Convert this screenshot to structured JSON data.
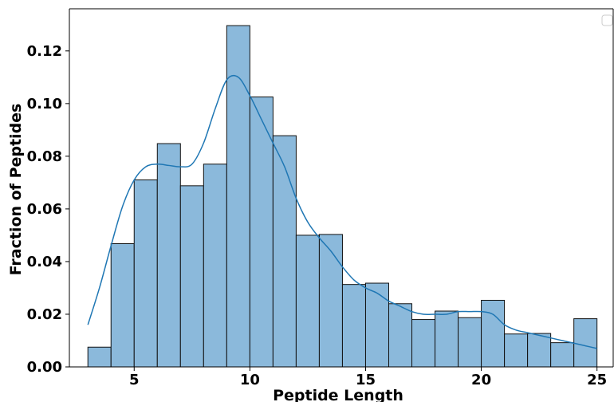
{
  "chart_data": {
    "type": "bar",
    "subtype": "histogram-with-kde",
    "title": "",
    "xlabel": "Peptide Length",
    "ylabel": "Fraction of Peptides",
    "xlim": [
      2.2,
      25.7
    ],
    "ylim": [
      0,
      0.136
    ],
    "x_ticks": [
      5,
      10,
      15,
      20,
      25
    ],
    "y_ticks": [
      0.0,
      0.02,
      0.04,
      0.06,
      0.08,
      0.1,
      0.12
    ],
    "y_tick_labels": [
      "0.00",
      "0.02",
      "0.04",
      "0.06",
      "0.08",
      "0.10",
      "0.12"
    ],
    "bin_width": 1,
    "bin_starts": [
      3,
      4,
      5,
      6,
      7,
      8,
      9,
      10,
      11,
      12,
      13,
      14,
      15,
      16,
      17,
      18,
      19,
      20,
      21,
      22,
      23,
      24
    ],
    "values": [
      0.0075,
      0.0468,
      0.071,
      0.0848,
      0.0688,
      0.077,
      0.1296,
      0.1025,
      0.0878,
      0.05,
      0.0503,
      0.0313,
      0.0318,
      0.024,
      0.018,
      0.0212,
      0.0187,
      0.0253,
      0.0125,
      0.0127,
      0.0092,
      0.0183
    ],
    "kde": {
      "x": [
        3,
        3.5,
        4,
        4.5,
        5,
        5.5,
        6,
        6.5,
        7,
        7.5,
        8,
        8.5,
        9,
        9.5,
        10,
        10.5,
        11,
        11.5,
        12,
        12.5,
        13,
        13.5,
        14,
        14.5,
        15,
        15.5,
        16,
        16.5,
        17,
        17.5,
        18,
        18.5,
        19,
        19.5,
        20,
        20.5,
        21,
        21.5,
        22,
        22.5,
        23,
        23.5,
        24,
        24.5,
        25
      ],
      "y": [
        0.016,
        0.03,
        0.046,
        0.061,
        0.071,
        0.076,
        0.077,
        0.0765,
        0.076,
        0.077,
        0.085,
        0.098,
        0.109,
        0.11,
        0.103,
        0.094,
        0.085,
        0.076,
        0.064,
        0.055,
        0.049,
        0.044,
        0.038,
        0.033,
        0.03,
        0.028,
        0.025,
        0.023,
        0.021,
        0.02,
        0.02,
        0.02,
        0.021,
        0.021,
        0.021,
        0.02,
        0.016,
        0.014,
        0.013,
        0.012,
        0.011,
        0.01,
        0.009,
        0.008,
        0.007
      ]
    },
    "colors": {
      "bar_fill": "#8bb9db",
      "bar_edge": "#111111",
      "kde_line": "#1f77b4"
    },
    "legend": {
      "position": "top-right",
      "entries": []
    },
    "grid": false
  }
}
